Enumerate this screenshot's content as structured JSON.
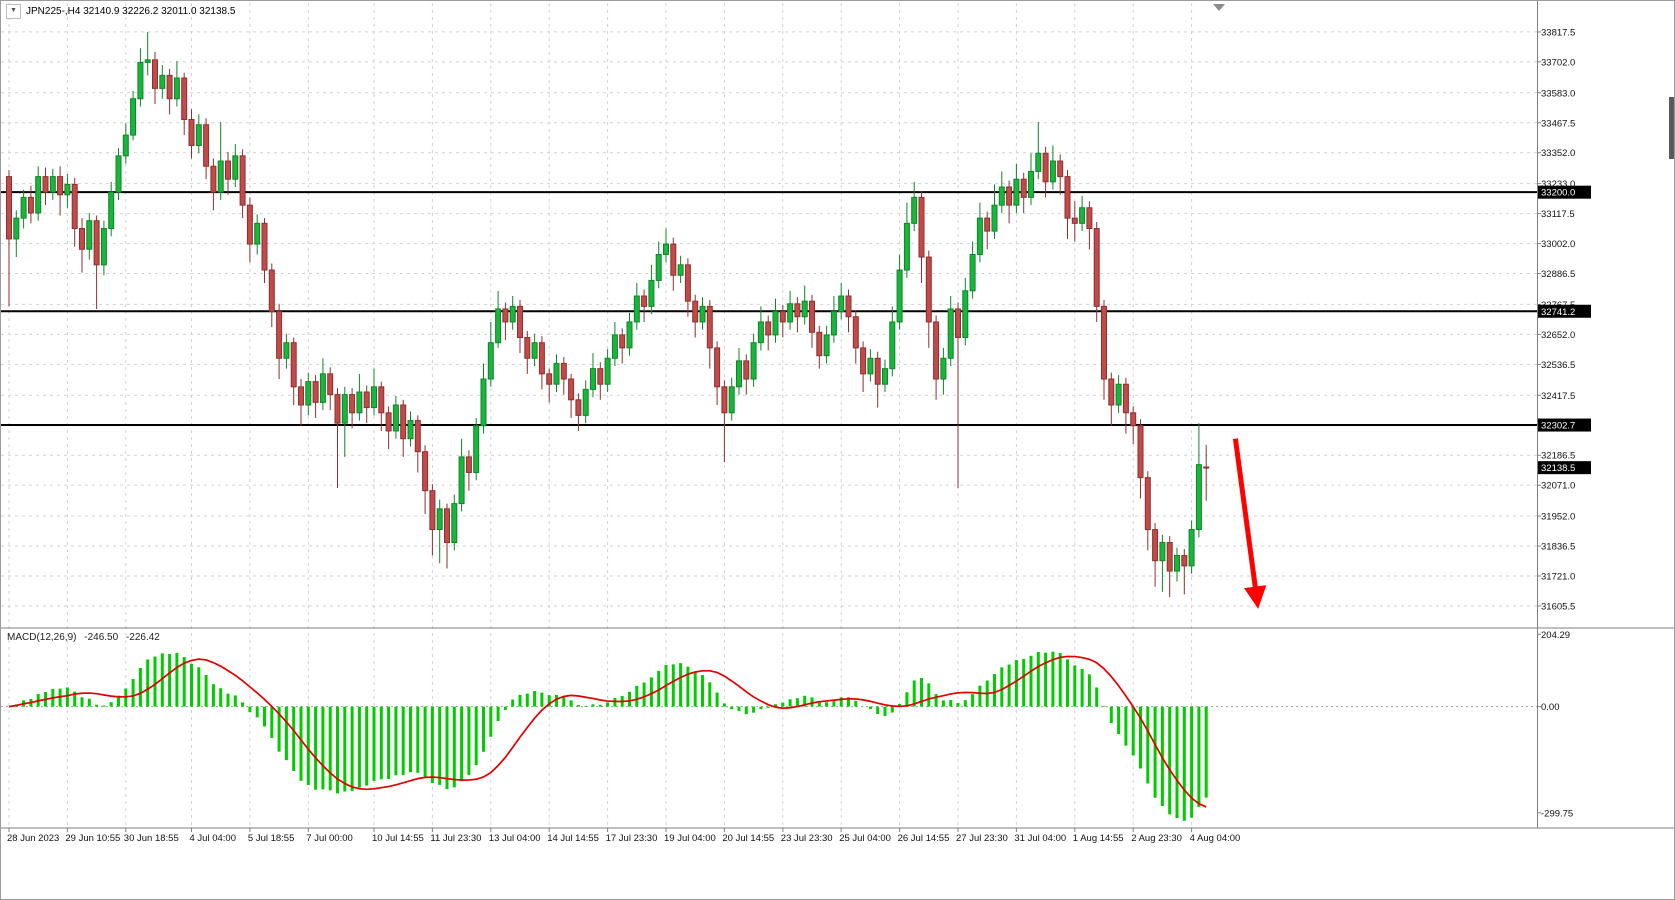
{
  "header": {
    "dropdown_icon": "▼",
    "title": "JPN225-,H4 32140.9 32226.2 32011.0 32138.5"
  },
  "chart_data": {
    "type": "candlestick",
    "symbol": "JPN225-",
    "timeframe": "H4",
    "title": "JPN225-,H4",
    "current_bar": {
      "open": 32140.9,
      "high": 32226.2,
      "low": 32011.0,
      "close": 32138.5
    },
    "grid": true,
    "legend": false,
    "colors": {
      "up_fill": "#19b53c",
      "up_border": "#0d8629",
      "down_fill": "#c14a4a",
      "down_border": "#8f2f2f",
      "grid": "#d2d2d2",
      "hline": "#000000",
      "macd_hist": "#00cc00",
      "macd_signal": "#e00000",
      "price_box_bg": "#000000",
      "arrow": "#ff0000"
    },
    "price_axis": {
      "range": [
        31524.5,
        33929.0
      ],
      "ticks": [
        33817.5,
        33702.0,
        33583.0,
        33467.5,
        33352.0,
        33233.0,
        33117.5,
        33002.0,
        32886.5,
        32767.5,
        32652.0,
        32536.5,
        32417.5,
        32302.0,
        32186.5,
        32071.0,
        31952.0,
        31836.5,
        31721.0,
        31605.5
      ],
      "current": 32138.5
    },
    "hlines": [
      33200.0,
      32741.2,
      32302.7
    ],
    "time_axis": {
      "labels": [
        {
          "text": "28 Jun 2023",
          "index": 0
        },
        {
          "text": "29 Jun 10:55",
          "index": 8
        },
        {
          "text": "30 Jun 18:55",
          "index": 16
        },
        {
          "text": "4 Jul 04:00",
          "index": 25
        },
        {
          "text": "5 Jul 18:55",
          "index": 33
        },
        {
          "text": "7 Jul 00:00",
          "index": 41
        },
        {
          "text": "10 Jul 14:55",
          "index": 50
        },
        {
          "text": "11 Jul 23:30",
          "index": 58
        },
        {
          "text": "13 Jul 04:00",
          "index": 66
        },
        {
          "text": "14 Jul 14:55",
          "index": 74
        },
        {
          "text": "17 Jul 23:30",
          "index": 82
        },
        {
          "text": "19 Jul 04:00",
          "index": 90
        },
        {
          "text": "20 Jul 14:55",
          "index": 98
        },
        {
          "text": "23 Jul 23:30",
          "index": 106
        },
        {
          "text": "25 Jul 04:00",
          "index": 114
        },
        {
          "text": "26 Jul 14:55",
          "index": 122
        },
        {
          "text": "27 Jul 23:30",
          "index": 130
        },
        {
          "text": "31 Jul 04:00",
          "index": 138
        },
        {
          "text": "1 Aug 14:55",
          "index": 146
        },
        {
          "text": "2 Aug 23:30",
          "index": 154
        },
        {
          "text": "4 Aug 04:00",
          "index": 162
        }
      ]
    },
    "candles": [
      [
        33260,
        33285,
        32760,
        33020
      ],
      [
        33020,
        33130,
        32950,
        33100
      ],
      [
        33100,
        33210,
        33060,
        33180
      ],
      [
        33180,
        33225,
        33080,
        33120
      ],
      [
        33120,
        33300,
        33090,
        33260
      ],
      [
        33260,
        33295,
        33150,
        33200
      ],
      [
        33200,
        33290,
        33170,
        33260
      ],
      [
        33260,
        33300,
        33110,
        33190
      ],
      [
        33190,
        33270,
        33140,
        33230
      ],
      [
        33230,
        33255,
        32990,
        33060
      ],
      [
        33060,
        33100,
        32890,
        32980
      ],
      [
        32980,
        33120,
        32940,
        33090
      ],
      [
        33090,
        33110,
        32750,
        32920
      ],
      [
        32920,
        33090,
        32880,
        33060
      ],
      [
        33060,
        33240,
        33030,
        33200
      ],
      [
        33200,
        33370,
        33170,
        33340
      ],
      [
        33340,
        33465,
        33310,
        33420
      ],
      [
        33420,
        33590,
        33400,
        33560
      ],
      [
        33560,
        33755,
        33530,
        33700
      ],
      [
        33700,
        33817,
        33650,
        33710
      ],
      [
        33710,
        33740,
        33540,
        33600
      ],
      [
        33600,
        33690,
        33560,
        33650
      ],
      [
        33650,
        33675,
        33500,
        33560
      ],
      [
        33560,
        33705,
        33530,
        33640
      ],
      [
        33640,
        33660,
        33420,
        33480
      ],
      [
        33480,
        33520,
        33330,
        33380
      ],
      [
        33380,
        33500,
        33350,
        33460
      ],
      [
        33460,
        33485,
        33250,
        33300
      ],
      [
        33300,
        33330,
        33130,
        33200
      ],
      [
        33200,
        33470,
        33170,
        33320
      ],
      [
        33320,
        33355,
        33190,
        33250
      ],
      [
        33250,
        33385,
        33220,
        33340
      ],
      [
        33340,
        33365,
        33100,
        33150
      ],
      [
        33150,
        33180,
        32930,
        33000
      ],
      [
        33000,
        33115,
        32960,
        33080
      ],
      [
        33080,
        33100,
        32850,
        32900
      ],
      [
        32900,
        32925,
        32680,
        32740
      ],
      [
        32740,
        32770,
        32480,
        32560
      ],
      [
        32560,
        32655,
        32520,
        32620
      ],
      [
        32620,
        32640,
        32380,
        32450
      ],
      [
        32450,
        32480,
        32300,
        32380
      ],
      [
        32380,
        32505,
        32340,
        32470
      ],
      [
        32470,
        32495,
        32330,
        32390
      ],
      [
        32390,
        32560,
        32360,
        32500
      ],
      [
        32500,
        32525,
        32360,
        32420
      ],
      [
        32420,
        32445,
        32060,
        32310
      ],
      [
        32310,
        32450,
        32180,
        32420
      ],
      [
        32420,
        32445,
        32290,
        32350
      ],
      [
        32350,
        32500,
        32320,
        32430
      ],
      [
        32430,
        32455,
        32310,
        32370
      ],
      [
        32370,
        32520,
        32340,
        32450
      ],
      [
        32450,
        32470,
        32280,
        32350
      ],
      [
        32350,
        32375,
        32210,
        32280
      ],
      [
        32280,
        32415,
        32250,
        32380
      ],
      [
        32380,
        32400,
        32180,
        32250
      ],
      [
        32250,
        32355,
        32220,
        32320
      ],
      [
        32320,
        32340,
        32120,
        32200
      ],
      [
        32200,
        32225,
        31960,
        32050
      ],
      [
        32050,
        32075,
        31800,
        31900
      ],
      [
        31900,
        32015,
        31770,
        31980
      ],
      [
        31980,
        32000,
        31750,
        31850
      ],
      [
        31850,
        32035,
        31820,
        32000
      ],
      [
        32000,
        32250,
        31970,
        32180
      ],
      [
        32180,
        32205,
        32050,
        32120
      ],
      [
        32120,
        32330,
        32090,
        32300
      ],
      [
        32300,
        32540,
        32270,
        32480
      ],
      [
        32480,
        32700,
        32450,
        32620
      ],
      [
        32620,
        32820,
        32600,
        32750
      ],
      [
        32750,
        32775,
        32630,
        32700
      ],
      [
        32700,
        32800,
        32670,
        32760
      ],
      [
        32760,
        32785,
        32580,
        32640
      ],
      [
        32640,
        32665,
        32500,
        32560
      ],
      [
        32560,
        32655,
        32530,
        32620
      ],
      [
        32620,
        32645,
        32440,
        32500
      ],
      [
        32500,
        32520,
        32390,
        32460
      ],
      [
        32460,
        32575,
        32430,
        32540
      ],
      [
        32540,
        32565,
        32420,
        32480
      ],
      [
        32480,
        32500,
        32330,
        32400
      ],
      [
        32400,
        32425,
        32280,
        32340
      ],
      [
        32340,
        32475,
        32310,
        32440
      ],
      [
        32440,
        32580,
        32410,
        32520
      ],
      [
        32520,
        32545,
        32400,
        32460
      ],
      [
        32460,
        32595,
        32430,
        32560
      ],
      [
        32560,
        32700,
        32530,
        32650
      ],
      [
        32650,
        32675,
        32540,
        32600
      ],
      [
        32600,
        32735,
        32570,
        32700
      ],
      [
        32700,
        32850,
        32670,
        32800
      ],
      [
        32800,
        32825,
        32700,
        32760
      ],
      [
        32760,
        32920,
        32730,
        32860
      ],
      [
        32860,
        33010,
        32830,
        32960
      ],
      [
        32960,
        33060,
        32930,
        33000
      ],
      [
        33000,
        33025,
        32820,
        32880
      ],
      [
        32880,
        32955,
        32850,
        32920
      ],
      [
        32920,
        32945,
        32720,
        32780
      ],
      [
        32780,
        32805,
        32640,
        32700
      ],
      [
        32700,
        32795,
        32670,
        32760
      ],
      [
        32760,
        32785,
        32520,
        32600
      ],
      [
        32600,
        32625,
        32380,
        32450
      ],
      [
        32450,
        32475,
        32160,
        32350
      ],
      [
        32350,
        32485,
        32320,
        32450
      ],
      [
        32450,
        32600,
        32420,
        32550
      ],
      [
        32550,
        32575,
        32420,
        32480
      ],
      [
        32480,
        32655,
        32450,
        32620
      ],
      [
        32620,
        32760,
        32590,
        32700
      ],
      [
        32700,
        32725,
        32590,
        32650
      ],
      [
        32650,
        32790,
        32620,
        32740
      ],
      [
        32740,
        32765,
        32640,
        32700
      ],
      [
        32700,
        32820,
        32670,
        32770
      ],
      [
        32770,
        32795,
        32660,
        32720
      ],
      [
        32720,
        32840,
        32690,
        32780
      ],
      [
        32780,
        32805,
        32600,
        32660
      ],
      [
        32660,
        32685,
        32520,
        32570
      ],
      [
        32570,
        32685,
        32540,
        32650
      ],
      [
        32650,
        32800,
        32620,
        32740
      ],
      [
        32740,
        32850,
        32710,
        32800
      ],
      [
        32800,
        32825,
        32660,
        32720
      ],
      [
        32720,
        32745,
        32540,
        32600
      ],
      [
        32600,
        32625,
        32430,
        32500
      ],
      [
        32500,
        32595,
        32470,
        32560
      ],
      [
        32560,
        32585,
        32370,
        32460
      ],
      [
        32460,
        32555,
        32430,
        32520
      ],
      [
        32520,
        32760,
        32490,
        32700
      ],
      [
        32700,
        32960,
        32670,
        32900
      ],
      [
        32900,
        33160,
        32870,
        33080
      ],
      [
        33080,
        33240,
        33050,
        33180
      ],
      [
        33180,
        33205,
        32850,
        32950
      ],
      [
        32950,
        32975,
        32600,
        32700
      ],
      [
        32700,
        32725,
        32400,
        32480
      ],
      [
        32480,
        32600,
        32420,
        32560
      ],
      [
        32560,
        32800,
        32530,
        32750
      ],
      [
        32750,
        32775,
        32060,
        32640
      ],
      [
        32640,
        32870,
        32610,
        32820
      ],
      [
        32820,
        33010,
        32790,
        32960
      ],
      [
        32960,
        33160,
        32930,
        33100
      ],
      [
        33100,
        33125,
        32980,
        33050
      ],
      [
        33050,
        33230,
        33020,
        33150
      ],
      [
        33150,
        33280,
        33120,
        33220
      ],
      [
        33220,
        33245,
        33080,
        33150
      ],
      [
        33150,
        33310,
        33120,
        33250
      ],
      [
        33250,
        33275,
        33120,
        33180
      ],
      [
        33180,
        33350,
        33150,
        33280
      ],
      [
        33280,
        33470,
        33250,
        33350
      ],
      [
        33350,
        33375,
        33180,
        33240
      ],
      [
        33240,
        33380,
        33210,
        33320
      ],
      [
        33320,
        33345,
        33190,
        33260
      ],
      [
        33260,
        33285,
        33020,
        33100
      ],
      [
        33100,
        33165,
        33010,
        33080
      ],
      [
        33080,
        33185,
        33050,
        33140
      ],
      [
        33140,
        33165,
        32980,
        33060
      ],
      [
        33060,
        33085,
        32700,
        32760
      ],
      [
        32760,
        32785,
        32400,
        32480
      ],
      [
        32480,
        32505,
        32300,
        32380
      ],
      [
        32380,
        32495,
        32350,
        32460
      ],
      [
        32460,
        32485,
        32270,
        32350
      ],
      [
        32350,
        32375,
        32230,
        32300
      ],
      [
        32300,
        32325,
        32020,
        32100
      ],
      [
        32100,
        32125,
        31820,
        31900
      ],
      [
        31900,
        31925,
        31680,
        31780
      ],
      [
        31780,
        31880,
        31660,
        31850
      ],
      [
        31850,
        31875,
        31640,
        31740
      ],
      [
        31740,
        31830,
        31700,
        31800
      ],
      [
        31800,
        31825,
        31650,
        31760
      ],
      [
        31760,
        31935,
        31730,
        31900
      ],
      [
        31900,
        32310,
        31870,
        32150
      ],
      [
        32140.9,
        32226.2,
        32011.0,
        32138.5
      ]
    ],
    "indicator": {
      "name": "MACD",
      "params": "12,26,9",
      "label": "MACD(12,26,9)",
      "value1": "-246.50",
      "value2": "-226.42",
      "fast": 12,
      "slow": 26,
      "signal": 9,
      "axis_ticks": [
        "204.29",
        "0.00",
        "-299.75"
      ],
      "axis_values": [
        204.29,
        0,
        -299.75
      ]
    },
    "annotations": {
      "arrow": {
        "from_index": 168,
        "from_price": 32250,
        "to_index": 171,
        "to_price": 31620,
        "color": "#ff0000"
      }
    }
  }
}
